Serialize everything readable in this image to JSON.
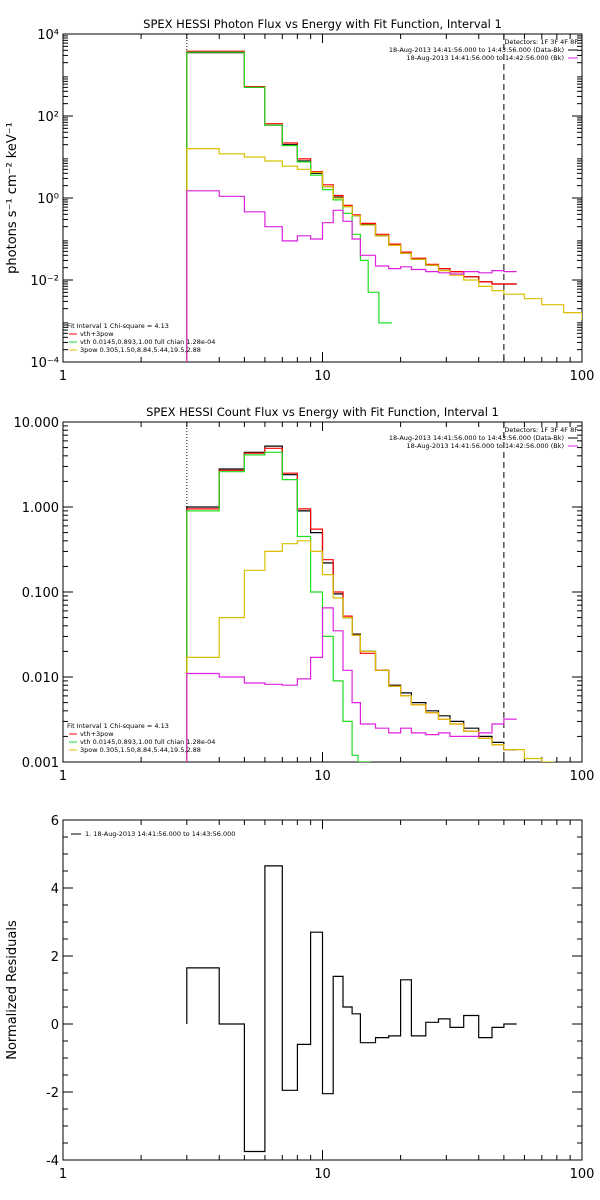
{
  "colors": {
    "black": "#000000",
    "red": "#ff0000",
    "green": "#22dd22",
    "yellow": "#d8c000",
    "magenta": "#dd22dd"
  },
  "chart_data": [
    {
      "type": "line",
      "scale": "log-log",
      "title": "SPEX HESSI Photon Flux vs Energy with Fit Function, Interval 1",
      "ylabel": "photons s⁻¹ cm⁻² keV⁻¹",
      "xlim": [
        1,
        100
      ],
      "ylim": [
        0.0001,
        10000
      ],
      "xticks": [
        1,
        10,
        100
      ],
      "xtick_labels": [
        "1",
        "10",
        "100"
      ],
      "yticks": [
        0.0001,
        0.01,
        1,
        100,
        10000
      ],
      "ytick_labels": [
        "10⁻⁴",
        "10⁻²",
        "10⁰",
        "10²",
        "10⁴"
      ],
      "detectors": "Detectors: 1F 3F 4F 8F",
      "legend_top": [
        {
          "text": "18-Aug-2013 14:41:56.000 to 14:43:56.000 (Data-Bk)",
          "color": "black"
        },
        {
          "text": "18-Aug-2013 14:41:56.000 to 14:42:56.000 (Bk)",
          "color": "magenta"
        }
      ],
      "legend_bottom": [
        {
          "text": "Fit Interval 1    Chi-square = 4.13",
          "color": "black"
        },
        {
          "text": "vth+3pow",
          "color": "red"
        },
        {
          "text": "vth 0.0145,0.893,1.00  full chian 1.28e-04",
          "color": "green"
        },
        {
          "text": "3pow 0.305,1.50,8.84,5.44,19.5,2.88",
          "color": "yellow"
        }
      ],
      "vlines": [
        {
          "x": 3,
          "style": "dotted"
        },
        {
          "x": 50,
          "style": "dashed"
        }
      ],
      "series": [
        {
          "color": "black",
          "x": [
            3,
            4,
            5,
            6,
            7,
            8,
            9,
            10,
            11,
            12,
            13,
            14,
            16,
            18,
            20,
            22,
            25,
            28,
            31,
            35,
            40,
            45,
            50
          ],
          "y": [
            3500,
            3500,
            500,
            60,
            20,
            8,
            4,
            1.9,
            1.05,
            0.62,
            0.37,
            0.23,
            0.12,
            0.07,
            0.045,
            0.032,
            0.023,
            0.019,
            0.016,
            0.012,
            0.009,
            0.008,
            0.008
          ]
        },
        {
          "color": "red",
          "x": [
            3,
            4,
            5,
            6,
            7,
            8,
            9,
            10,
            11,
            12,
            13,
            14,
            16,
            18,
            20,
            22,
            25,
            28,
            31,
            35,
            40,
            45,
            50
          ],
          "y": [
            3800,
            3800,
            520,
            65,
            22,
            9,
            4.4,
            2.1,
            1.15,
            0.66,
            0.39,
            0.24,
            0.13,
            0.075,
            0.048,
            0.034,
            0.024,
            0.019,
            0.016,
            0.012,
            0.009,
            0.008,
            0.008
          ]
        },
        {
          "color": "green",
          "x": [
            3,
            4,
            5,
            6,
            7,
            8,
            9,
            10,
            11,
            12,
            13,
            14,
            15,
            16.5
          ],
          "y": [
            3600,
            3600,
            500,
            60,
            19,
            7.6,
            3.6,
            1.6,
            0.9,
            0.42,
            0.13,
            0.03,
            0.005,
            0.0009
          ]
        },
        {
          "color": "yellow",
          "x": [
            3,
            4,
            5,
            6,
            7,
            8,
            9,
            10,
            11,
            12,
            13,
            14,
            16,
            18,
            20,
            22,
            25,
            28,
            31,
            35,
            40,
            45,
            50,
            60,
            70,
            85,
            100
          ],
          "y": [
            16,
            12,
            10,
            8,
            6,
            5,
            4.2,
            1.9,
            1.0,
            0.62,
            0.37,
            0.22,
            0.12,
            0.07,
            0.045,
            0.032,
            0.023,
            0.017,
            0.013,
            0.01,
            0.007,
            0.0055,
            0.0045,
            0.0035,
            0.0025,
            0.0016,
            0.0011
          ]
        },
        {
          "color": "magenta",
          "x": [
            3,
            4,
            5,
            6,
            7,
            8,
            9,
            10,
            11,
            12,
            13,
            14,
            16,
            18,
            20,
            22,
            25,
            28,
            31,
            35,
            40,
            45,
            50
          ],
          "y": [
            1.5,
            1.1,
            0.46,
            0.2,
            0.09,
            0.12,
            0.1,
            0.25,
            0.5,
            0.27,
            0.1,
            0.04,
            0.022,
            0.019,
            0.021,
            0.018,
            0.016,
            0.015,
            0.014,
            0.016,
            0.015,
            0.017,
            0.016
          ]
        }
      ]
    },
    {
      "type": "line",
      "scale": "log-log",
      "title": "SPEX HESSI Count Flux vs Energy with Fit Function, Interval 1",
      "ylabel": "",
      "xlim": [
        1,
        100
      ],
      "ylim": [
        0.001,
        10
      ],
      "xticks": [
        1,
        10,
        100
      ],
      "xtick_labels": [
        "1",
        "10",
        "100"
      ],
      "yticks": [
        0.001,
        0.01,
        0.1,
        1,
        10
      ],
      "ytick_labels": [
        "0.001",
        "0.010",
        "0.100",
        "1.000",
        "10.000"
      ],
      "detectors": "Detectors: 1F 3F 4F 8F",
      "legend_top": [
        {
          "text": "18-Aug-2013 14:41:56.000 to 14:43:56.000 (Data-Bk)",
          "color": "black"
        },
        {
          "text": "18-Aug-2013 14:41:56.000 to 14:42:56.000 (Bk)",
          "color": "magenta"
        }
      ],
      "legend_bottom": [
        {
          "text": "Fit Interval 1    Chi-square = 4.13",
          "color": "black"
        },
        {
          "text": "vth+3pow",
          "color": "red"
        },
        {
          "text": "vth 0.0145,0.893,1.00  full chian 1.28e-04",
          "color": "green"
        },
        {
          "text": "3pow 0.305,1.50,8.84,5.44,19.5,2.88",
          "color": "yellow"
        }
      ],
      "vlines": [
        {
          "x": 3,
          "style": "dotted"
        },
        {
          "x": 50,
          "style": "dashed"
        }
      ],
      "series": [
        {
          "color": "black",
          "x": [
            3,
            4,
            5,
            6,
            7,
            8,
            9,
            10,
            11,
            12,
            13,
            14,
            16,
            18,
            20,
            22,
            25,
            28,
            31,
            35,
            40,
            45,
            50
          ],
          "y": [
            1.0,
            2.8,
            4.4,
            5.2,
            2.4,
            0.9,
            0.5,
            0.22,
            0.095,
            0.05,
            0.032,
            0.02,
            0.012,
            0.008,
            0.0065,
            0.005,
            0.004,
            0.0035,
            0.003,
            0.0025,
            0.002,
            0.0017,
            0.0014
          ]
        },
        {
          "color": "red",
          "x": [
            3,
            4,
            5,
            6,
            7,
            8,
            9,
            10,
            11,
            12,
            13,
            14,
            16,
            18,
            20,
            22,
            25,
            28,
            31,
            35,
            40,
            45,
            50
          ],
          "y": [
            0.95,
            2.7,
            4.3,
            4.9,
            2.5,
            0.95,
            0.55,
            0.24,
            0.1,
            0.052,
            0.031,
            0.019,
            0.012,
            0.0078,
            0.006,
            0.0047,
            0.0038,
            0.0032,
            0.0028,
            0.0023,
            0.0019,
            0.0016,
            0.0014
          ]
        },
        {
          "color": "green",
          "x": [
            3,
            4,
            5,
            6,
            7,
            8,
            9,
            10,
            11,
            12,
            13,
            13.7
          ],
          "y": [
            0.9,
            2.6,
            4.1,
            4.4,
            2.1,
            0.45,
            0.1,
            0.03,
            0.009,
            0.003,
            0.0012,
            0.0009
          ]
        },
        {
          "color": "yellow",
          "x": [
            3,
            4,
            5,
            6,
            7,
            8,
            9,
            10,
            11,
            12,
            13,
            14,
            16,
            18,
            20,
            22,
            25,
            28,
            31,
            35,
            40,
            45,
            50,
            60,
            70
          ],
          "y": [
            0.017,
            0.05,
            0.18,
            0.3,
            0.37,
            0.4,
            0.3,
            0.16,
            0.085,
            0.05,
            0.031,
            0.02,
            0.012,
            0.0078,
            0.006,
            0.0047,
            0.0038,
            0.0032,
            0.0028,
            0.0023,
            0.0019,
            0.0016,
            0.0014,
            0.0011,
            0.0009
          ]
        },
        {
          "color": "magenta",
          "x": [
            3,
            4,
            5,
            6,
            7,
            8,
            9,
            10,
            11,
            12,
            13,
            14,
            16,
            18,
            20,
            22,
            25,
            28,
            31,
            35,
            40,
            45,
            50
          ],
          "y": [
            0.011,
            0.01,
            0.0085,
            0.0082,
            0.008,
            0.0095,
            0.017,
            0.065,
            0.035,
            0.012,
            0.005,
            0.0028,
            0.0025,
            0.0022,
            0.0025,
            0.0022,
            0.0021,
            0.0022,
            0.002,
            0.002,
            0.0022,
            0.0028,
            0.0032
          ]
        }
      ]
    },
    {
      "type": "line",
      "scale": "log-linear",
      "title": "",
      "ylabel": "Normalized Residuals",
      "xlim": [
        1,
        100
      ],
      "ylim": [
        -4,
        6
      ],
      "xticks": [
        1,
        10,
        100
      ],
      "xtick_labels": [
        "1",
        "10",
        "100"
      ],
      "yticks": [
        -4,
        -2,
        0,
        2,
        4,
        6
      ],
      "ytick_labels": [
        "-4",
        "-2",
        "0",
        "2",
        "4",
        "6"
      ],
      "legend_top": [
        {
          "text": "1. 18-Aug-2013 14:41:56.000 to 14:43:56.000",
          "color": "black"
        }
      ],
      "series": [
        {
          "color": "black",
          "x": [
            3,
            4,
            5,
            6,
            7,
            8,
            9,
            10,
            11,
            12,
            13,
            14,
            16,
            18,
            20,
            22,
            25,
            28,
            31,
            35,
            40,
            45,
            50
          ],
          "y": [
            1.65,
            0.0,
            -3.75,
            4.65,
            -1.95,
            -0.6,
            2.7,
            -2.05,
            1.4,
            0.5,
            0.3,
            -0.55,
            -0.4,
            -0.35,
            1.3,
            -0.35,
            0.05,
            0.15,
            -0.1,
            0.25,
            -0.4,
            -0.1,
            0
          ]
        }
      ]
    }
  ]
}
